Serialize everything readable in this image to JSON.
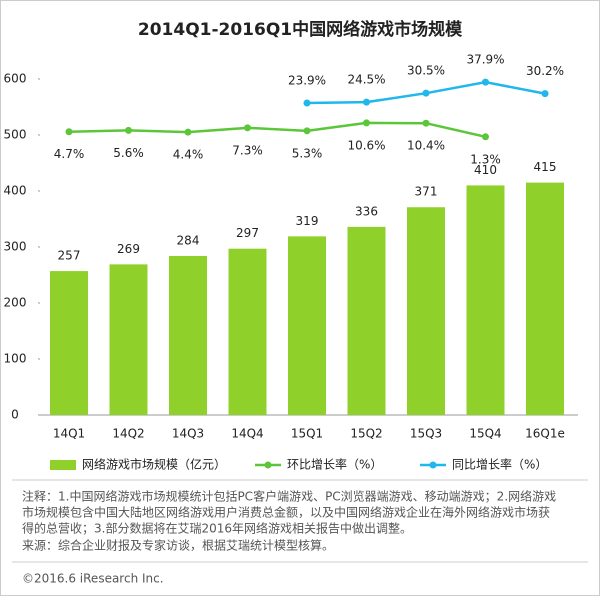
{
  "chart_data": {
    "type": "bar-line",
    "title": "2014Q1-2016Q1中国网络游戏市场规模",
    "categories": [
      "14Q1",
      "14Q2",
      "14Q3",
      "14Q4",
      "15Q1",
      "15Q2",
      "15Q3",
      "15Q4",
      "16Q1e"
    ],
    "series": [
      {
        "name": "网络游戏市场规模（亿元）",
        "type": "bar",
        "color": "#8fd12a",
        "values": [
          257,
          269,
          284,
          297,
          319,
          336,
          371,
          410,
          415
        ]
      },
      {
        "name": "环比增长率（%）",
        "type": "line",
        "axis": "y2",
        "color": "#5cc63a",
        "values": [
          4.7,
          5.6,
          4.4,
          7.3,
          5.3,
          10.6,
          10.4,
          1.3,
          null
        ],
        "value_labels": [
          "4.7%",
          "5.6%",
          "4.4%",
          "7.3%",
          "5.3%",
          "10.6%",
          "10.4%",
          "1.3%",
          null
        ]
      },
      {
        "name": "同比增长率（%）",
        "type": "line",
        "axis": "y2",
        "color": "#1fb7ec",
        "values": [
          null,
          null,
          null,
          null,
          23.9,
          24.5,
          30.5,
          37.9,
          30.2
        ],
        "value_labels": [
          null,
          null,
          null,
          null,
          "23.9%",
          "24.5%",
          "30.5%",
          "37.9%",
          "30.2%"
        ]
      }
    ],
    "ylim": [
      0,
      600
    ],
    "yticks": [
      0,
      100,
      200,
      300,
      400,
      500,
      600
    ],
    "y2lim": [
      -185,
      40
    ],
    "grid": false,
    "notes": [
      "注释：1.中国网络游戏市场规模统计包括PC客户端游戏、PC浏览器端游戏、移动端游戏；2.网络游戏",
      "市场规模包含中国大陆地区网络游戏用户消费总金额，以及中国网络游戏企业在海外网络游戏市场获",
      "得的总营收；3.部分数据将在艾瑞2016年网络游戏相关报告中做出调整。"
    ],
    "source": "来源：综合企业财报及专家访谈，根据艾瑞统计模型核算。",
    "footer": "©2016.6 iResearch Inc."
  }
}
